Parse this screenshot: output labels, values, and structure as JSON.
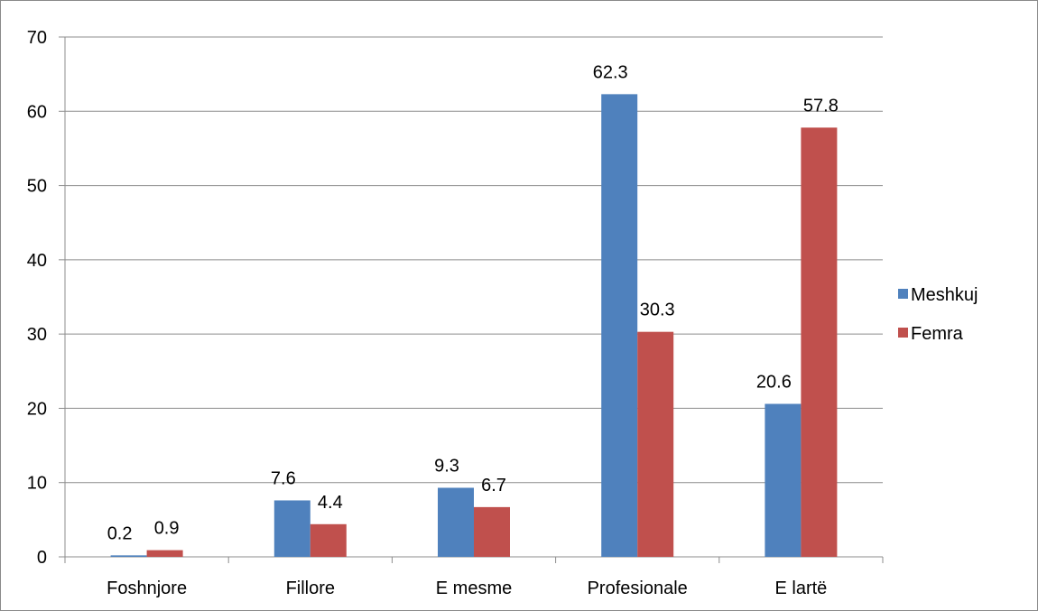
{
  "chart_data": {
    "type": "bar",
    "title": "",
    "xlabel": "",
    "ylabel": "",
    "categories": [
      "Foshnjore",
      "Fillore",
      "E mesme",
      "Profesionale",
      "E lartë"
    ],
    "series": [
      {
        "name": "Meshkuj",
        "color": "#4f81bd",
        "values": [
          0.2,
          7.6,
          9.3,
          62.3,
          20.6
        ]
      },
      {
        "name": "Femra",
        "color": "#c0504d",
        "values": [
          0.9,
          4.4,
          6.7,
          30.3,
          57.8
        ]
      }
    ],
    "ylim": [
      0,
      70
    ],
    "yticks": [
      0,
      10,
      20,
      30,
      40,
      50,
      60,
      70
    ],
    "ytick_labels": [
      "0",
      "10",
      "20",
      "30",
      "40",
      "50",
      "60",
      "70"
    ],
    "data_labels": [
      [
        "0.2",
        "7.6",
        "9.3",
        "62.3",
        "20.6"
      ],
      [
        "0.9",
        "4.4",
        "6.7",
        "30.3",
        "57.8"
      ]
    ],
    "grid": true,
    "legend_position": "right"
  }
}
